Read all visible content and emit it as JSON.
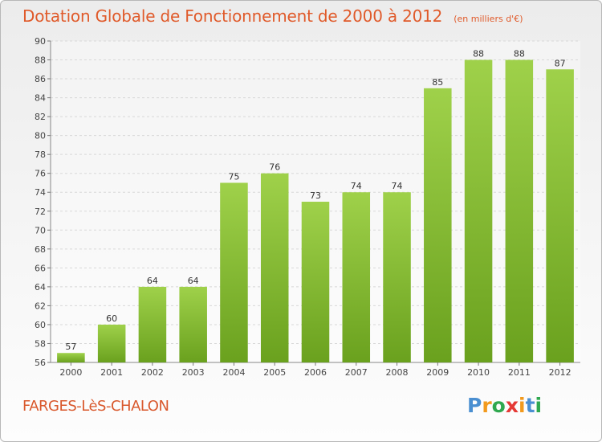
{
  "header": {
    "title": "Dotation Globale de Fonctionnement de 2000 à 2012",
    "subtitle": "(en milliers d'€)"
  },
  "footer": {
    "commune": "FARGES-LèS-CHALON",
    "logo": [
      "P",
      "r",
      "o",
      "x",
      "i",
      "t",
      "i"
    ]
  },
  "colors": {
    "title": "#e05a2a",
    "bar_light": "#9fd14a",
    "bar_dark": "#6aa11e",
    "logo": [
      "#4a8fd1",
      "#f29a1d",
      "#2fa84f",
      "#e53935",
      "#f29a1d",
      "#4a8fd1",
      "#2fa84f"
    ]
  },
  "chart_data": {
    "type": "bar",
    "title": "Dotation Globale de Fonctionnement de 2000 à 2012",
    "subtitle": "(en milliers d'€)",
    "categories": [
      "2000",
      "2001",
      "2002",
      "2003",
      "2004",
      "2005",
      "2006",
      "2007",
      "2008",
      "2009",
      "2010",
      "2011",
      "2012"
    ],
    "values": [
      57,
      60,
      64,
      64,
      75,
      76,
      73,
      74,
      74,
      85,
      88,
      88,
      87
    ],
    "ylim": [
      56,
      90
    ],
    "yticks": [
      56,
      58,
      60,
      62,
      64,
      66,
      68,
      70,
      72,
      74,
      76,
      78,
      80,
      82,
      84,
      86,
      88,
      90
    ],
    "grid": true,
    "xlabel": "",
    "ylabel": ""
  }
}
